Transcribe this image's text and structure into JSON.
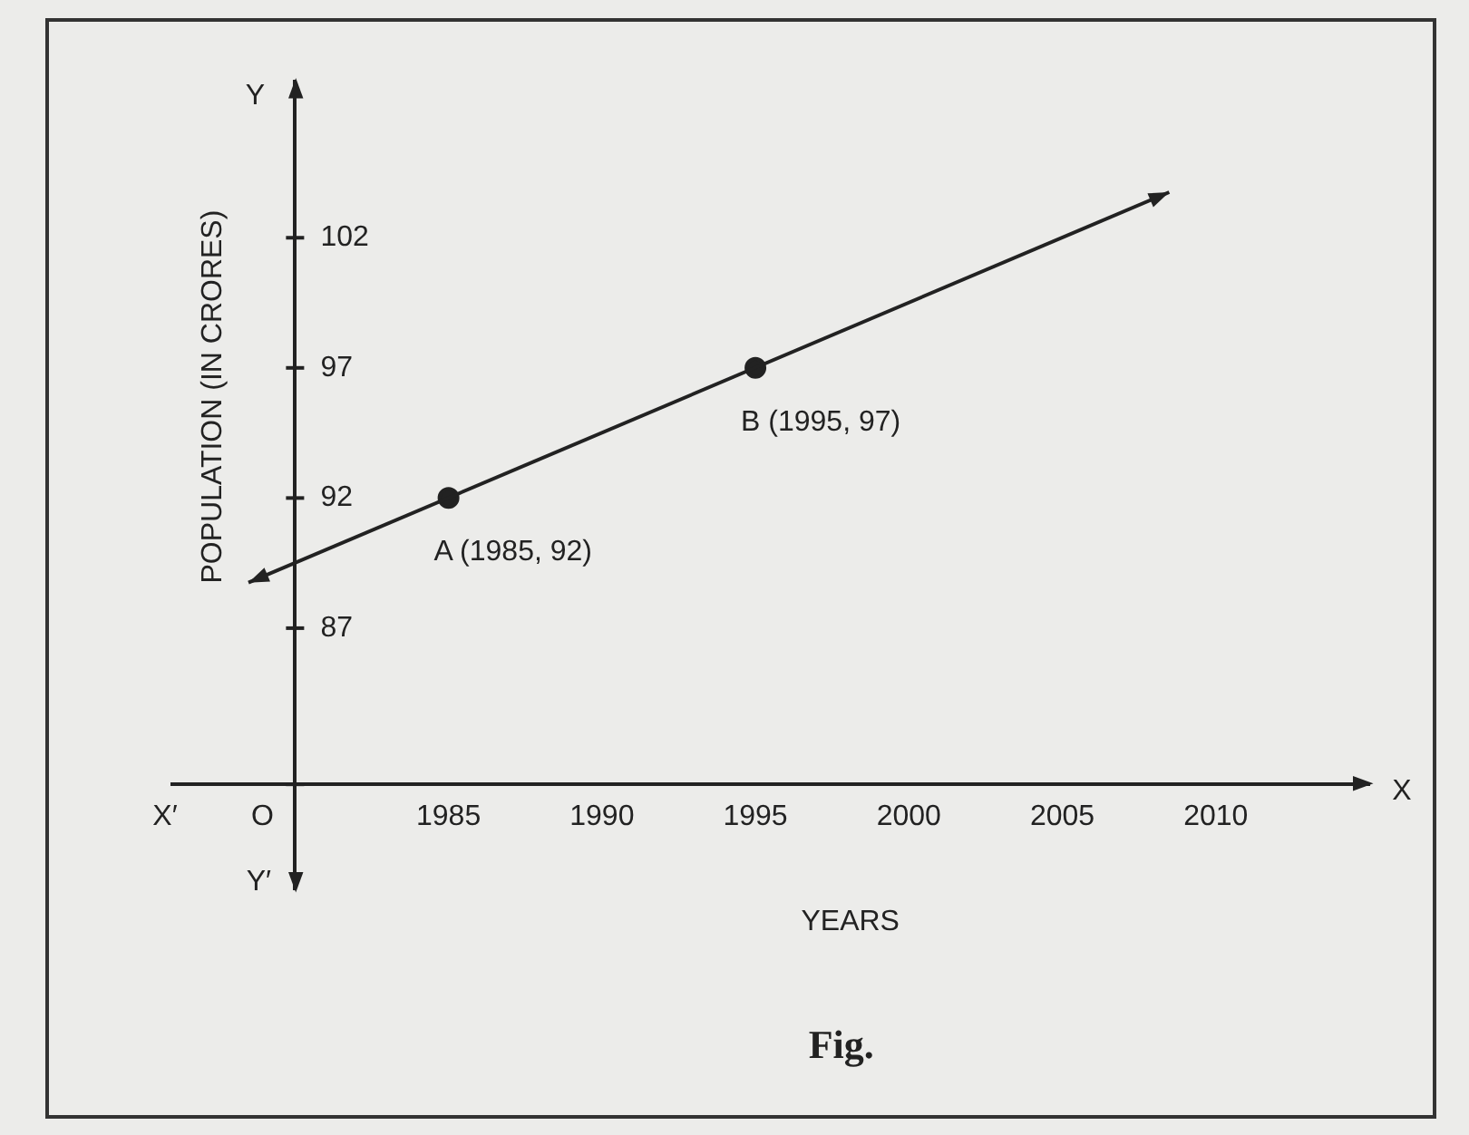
{
  "chart_data": {
    "type": "scatter",
    "xlabel": "YEARS",
    "ylabel": "POPULATION (IN CRORES)",
    "xlim": [
      1976,
      2015
    ],
    "ylim": [
      77,
      108
    ],
    "xticks": [
      {
        "value": 1980,
        "label": null
      },
      1985,
      1990,
      1995,
      2000,
      2005,
      2010
    ],
    "yticks": [
      {
        "value": 81,
        "label": null
      },
      87,
      92,
      97,
      102
    ],
    "series": [
      {
        "type": "scatter",
        "x": [
          1985,
          1995
        ],
        "values": [
          92,
          97
        ],
        "color": "#222222",
        "marker": "circle"
      }
    ],
    "annotations": [
      "Y",
      "Y′",
      "X",
      "X′",
      "Fig.",
      "O",
      {
        "text": "A (1985, 92)",
        "x": 1985,
        "y": 92
      },
      {
        "text": "B (1995, 97)",
        "x": 1995,
        "y": 97
      }
    ],
    "grid": false,
    "legend": false
  }
}
